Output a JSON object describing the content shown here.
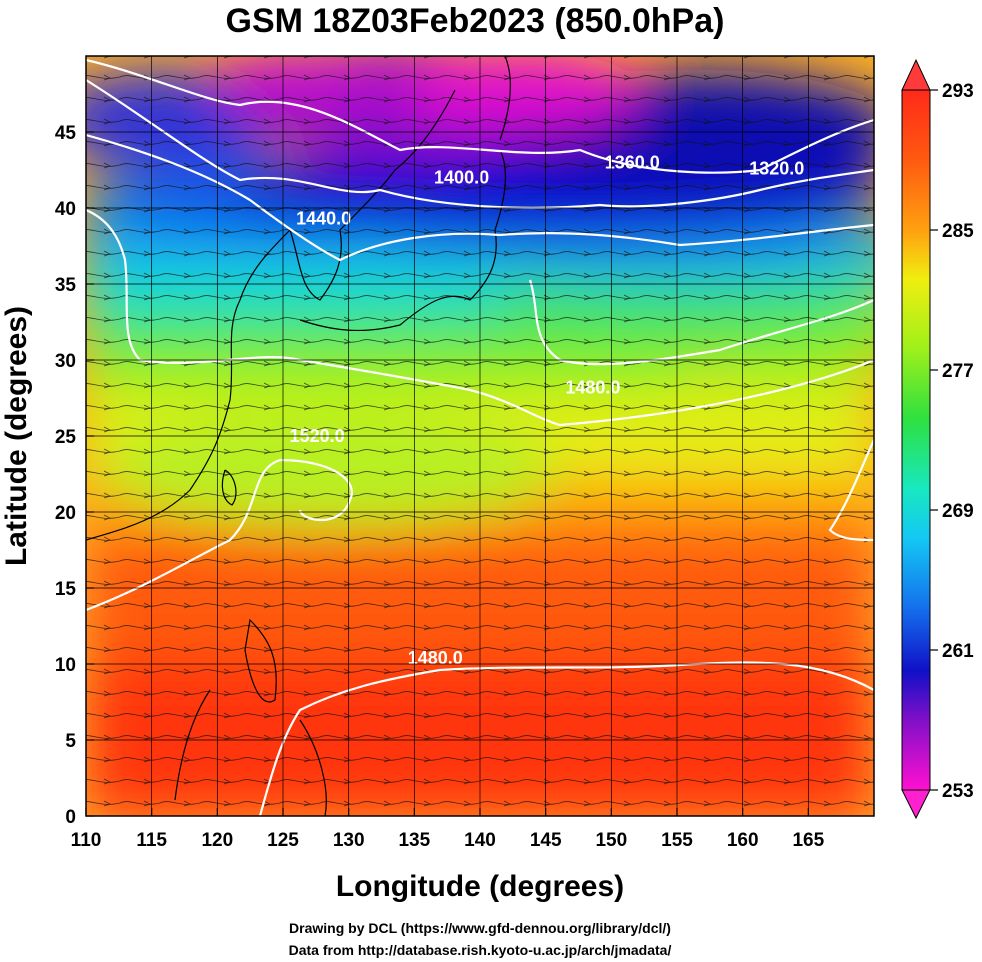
{
  "title": "GSM 18Z03Feb2023 (850.0hPa)",
  "xlabel": "Longitude (degrees)",
  "ylabel": "Latitude  (degrees)",
  "credits": [
    "Drawing by DCL (https://www.gfd-dennou.org/library/dcl/)",
    "Data from http://database.rish.kyoto-u.ac.jp/arch/jmadata/"
  ],
  "chart_data": {
    "type": "heatmap",
    "description_fields": "temperature shading with geopotential height contours and wind streamlines",
    "xlim": [
      110,
      170
    ],
    "ylim": [
      0,
      50
    ],
    "x_ticks": [
      110,
      115,
      120,
      125,
      130,
      135,
      140,
      145,
      150,
      155,
      160,
      165
    ],
    "y_ticks": [
      0,
      5,
      10,
      15,
      20,
      25,
      30,
      35,
      40,
      45
    ],
    "grid": true,
    "colorbar": {
      "range": [
        253,
        293
      ],
      "tick_labels": [
        "293",
        "285",
        "277",
        "269",
        "261",
        "253"
      ],
      "ticks": [
        293,
        285,
        277,
        269,
        261,
        253
      ],
      "placement": "right"
    },
    "contours": [
      {
        "label": "1320.0",
        "lon": 160.5,
        "lat": 42.2
      },
      {
        "label": "1360.0",
        "lon": 149.5,
        "lat": 42.6
      },
      {
        "label": "1400.0",
        "lon": 136.5,
        "lat": 41.6
      },
      {
        "label": "1440.0",
        "lon": 126.0,
        "lat": 38.9
      },
      {
        "label": "1480.0",
        "lon": 146.5,
        "lat": 27.8
      },
      {
        "label": "1520.0",
        "lon": 125.5,
        "lat": 24.6
      },
      {
        "label": "1480.0",
        "lon": 134.5,
        "lat": 10.0
      }
    ]
  }
}
